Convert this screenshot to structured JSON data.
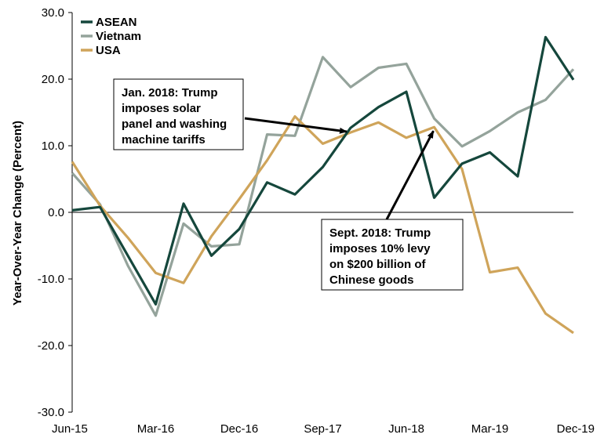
{
  "chart_data": {
    "type": "line",
    "ylabel": "Year-Over-Year Change (Percent)",
    "ylim": [
      -30,
      30
    ],
    "y_ticks": [
      "30.0",
      "20.0",
      "10.0",
      "0.0",
      "-10.0",
      "-20.0",
      "-30.0"
    ],
    "x_tick_labels": [
      "Jun-15",
      "Mar-16",
      "Dec-16",
      "Sep-17",
      "Jun-18",
      "Mar-19",
      "Dec-19"
    ],
    "x": [
      "Jun-15",
      "Sep-15",
      "Dec-15",
      "Mar-16",
      "Jun-16",
      "Sep-16",
      "Dec-16",
      "Mar-17",
      "Jun-17",
      "Sep-17",
      "Dec-17",
      "Mar-18",
      "Jun-18",
      "Sep-18",
      "Dec-18",
      "Mar-19",
      "Jun-19",
      "Sep-19",
      "Dec-19"
    ],
    "series": [
      {
        "name": "ASEAN",
        "color": "#15473c",
        "values": [
          0.3,
          0.8,
          -6.5,
          -13.8,
          1.3,
          -6.5,
          -2.5,
          4.5,
          2.7,
          6.8,
          12.7,
          15.8,
          18.1,
          2.2,
          7.3,
          9.0,
          5.4,
          26.3,
          19.9
        ]
      },
      {
        "name": "Vietnam",
        "color": "#94a39b",
        "values": [
          5.9,
          1.2,
          -8.0,
          -15.5,
          -1.7,
          -5.1,
          -4.8,
          11.7,
          11.5,
          23.3,
          18.8,
          21.7,
          22.3,
          14.1,
          9.9,
          12.2,
          15.0,
          16.9,
          21.5
        ]
      },
      {
        "name": "USA",
        "color": "#cfa45a",
        "values": [
          7.6,
          1.0,
          -3.8,
          -9.1,
          -10.6,
          -3.6,
          2.0,
          7.8,
          14.4,
          10.3,
          12.0,
          13.5,
          11.2,
          12.8,
          6.5,
          -9.0,
          -8.3,
          -15.2,
          -18.1
        ]
      }
    ],
    "legend_position": "top-left",
    "grid": false,
    "annotations": [
      {
        "text_lines": [
          "Jan. 2018: Trump",
          "imposes solar",
          "panel and washing",
          "machine tariffs"
        ],
        "target_x": "Dec-17",
        "target_y": 12.0
      },
      {
        "text_lines": [
          "Sept. 2018: Trump",
          "imposes 10% levy",
          "on $200 billion of",
          "Chinese goods"
        ],
        "target_x": "Sep-18",
        "target_y": 12.8
      }
    ]
  }
}
